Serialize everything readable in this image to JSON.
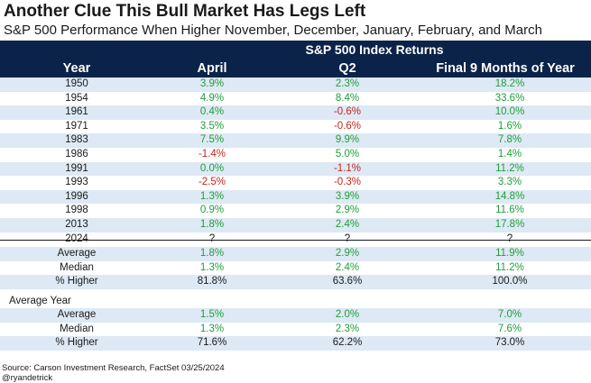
{
  "title": "Another Clue This Bull Market Has Legs Left",
  "subtitle": "S&P 500 Performance When Higher November, December, January, February, and March",
  "colors": {
    "header_bg": "#0b2348",
    "band": "#dde9f4",
    "positive": "#1f9e3a",
    "negative": "#c8261d"
  },
  "chart_data": {
    "type": "table",
    "group_header": "S&P 500 Index Returns",
    "columns": [
      "Year",
      "April",
      "Q2",
      "Final 9 Months of Year"
    ],
    "rows": [
      {
        "year": "1950",
        "april": "3.9%",
        "q2": "2.3%",
        "final9": "18.2%"
      },
      {
        "year": "1954",
        "april": "4.9%",
        "q2": "8.4%",
        "final9": "33.6%"
      },
      {
        "year": "1961",
        "april": "0.4%",
        "q2": "-0.6%",
        "final9": "10.0%"
      },
      {
        "year": "1971",
        "april": "3.5%",
        "q2": "-0.6%",
        "final9": "1.6%"
      },
      {
        "year": "1983",
        "april": "7.5%",
        "q2": "9.9%",
        "final9": "7.8%"
      },
      {
        "year": "1986",
        "april": "-1.4%",
        "q2": "5.0%",
        "final9": "1.4%"
      },
      {
        "year": "1991",
        "april": "0.0%",
        "q2": "-1.1%",
        "final9": "11.2%"
      },
      {
        "year": "1993",
        "april": "-2.5%",
        "q2": "-0.3%",
        "final9": "3.3%"
      },
      {
        "year": "1996",
        "april": "1.3%",
        "q2": "3.9%",
        "final9": "14.8%"
      },
      {
        "year": "1998",
        "april": "0.9%",
        "q2": "2.9%",
        "final9": "11.6%"
      },
      {
        "year": "2013",
        "april": "1.8%",
        "q2": "2.4%",
        "final9": "17.8%"
      },
      {
        "year": "2024",
        "april": "?",
        "q2": "?",
        "final9": "?"
      }
    ],
    "summary": [
      {
        "label": "Average",
        "april": "1.8%",
        "q2": "2.9%",
        "final9": "11.9%"
      },
      {
        "label": "Median",
        "april": "1.3%",
        "q2": "2.4%",
        "final9": "11.2%"
      },
      {
        "label": "% Higher",
        "april": "81.8%",
        "q2": "63.6%",
        "final9": "100.0%"
      }
    ],
    "average_year_label": "Average Year",
    "average_year": [
      {
        "label": "Average",
        "april": "1.5%",
        "q2": "2.0%",
        "final9": "7.0%"
      },
      {
        "label": "Median",
        "april": "1.3%",
        "q2": "2.3%",
        "final9": "7.6%"
      },
      {
        "label": "% Higher",
        "april": "71.6%",
        "q2": "62.2%",
        "final9": "73.0%"
      }
    ]
  },
  "source": "Source: Carson Investment Research, FactSet 03/25/2024",
  "handle": "@ryandetrick"
}
